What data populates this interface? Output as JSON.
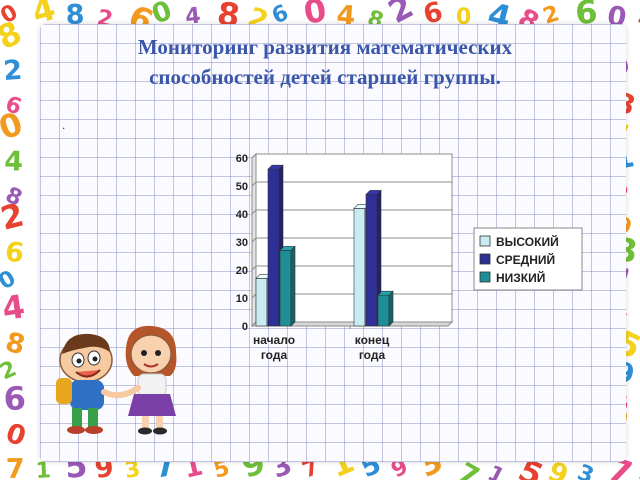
{
  "slide": {
    "title_line1": "Мониторинг развития математических",
    "title_line2": "способностей детей старшей группы.",
    "marker": "."
  },
  "chart_data": {
    "type": "bar",
    "categories": [
      [
        "начало",
        "года"
      ],
      [
        "конец",
        "года"
      ]
    ],
    "series": [
      {
        "name": "ВЫСОКИЙ",
        "values": [
          17,
          42
        ],
        "color": "#c9ecf2"
      },
      {
        "name": "СРЕДНИЙ",
        "values": [
          56,
          47
        ],
        "color": "#2f2f9a"
      },
      {
        "name": "НИЗКИЙ",
        "values": [
          27,
          11
        ],
        "color": "#1e8f96"
      }
    ],
    "ylim": [
      0,
      60
    ],
    "yticks": [
      0,
      10,
      20,
      30,
      40,
      50,
      60
    ],
    "grid": true,
    "legend": "right",
    "three_d": true
  },
  "decor": {
    "numerals_colors": [
      "#e8412f",
      "#f29a1d",
      "#f4d21c",
      "#6fbf3a",
      "#2f8fd6",
      "#9b59b6",
      "#e84c8b"
    ],
    "illustration": "two-cartoon-kids"
  }
}
